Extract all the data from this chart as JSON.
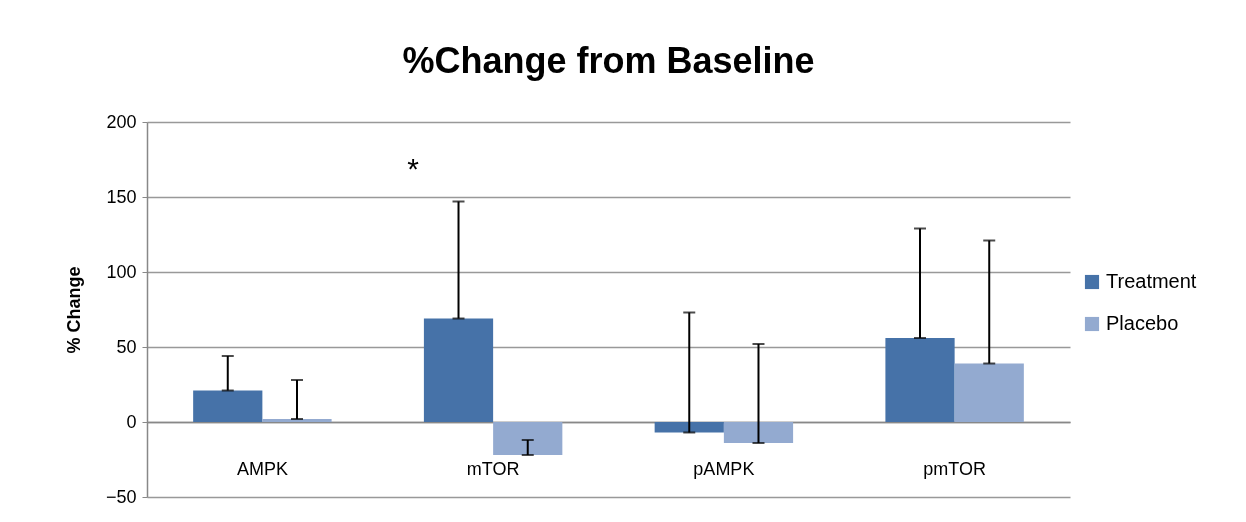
{
  "chart_data": {
    "type": "bar",
    "title": "%Change from Baseline",
    "ylabel": "% Change",
    "categories": [
      "AMPK",
      "mTOR",
      "pAMPK",
      "pmTOR"
    ],
    "series": [
      {
        "name": "Treatment",
        "color": "#4672a8",
        "values": [
          21,
          69,
          -7,
          56
        ],
        "errors": [
          [
            21,
            44
          ],
          [
            69,
            147
          ],
          [
            -7,
            73
          ],
          [
            56,
            129
          ]
        ]
      },
      {
        "name": "Placebo",
        "color": "#93aad0",
        "values": [
          2,
          -22,
          -14,
          39
        ],
        "errors": [
          [
            2,
            28
          ],
          [
            -22,
            -12
          ],
          [
            -14,
            52
          ],
          [
            39,
            121
          ]
        ]
      }
    ],
    "ylim": [
      -50,
      200
    ],
    "yticks": [
      -50,
      0,
      50,
      100,
      150,
      200
    ],
    "grid": "y",
    "legend": "right",
    "annotations": [
      "*"
    ]
  }
}
